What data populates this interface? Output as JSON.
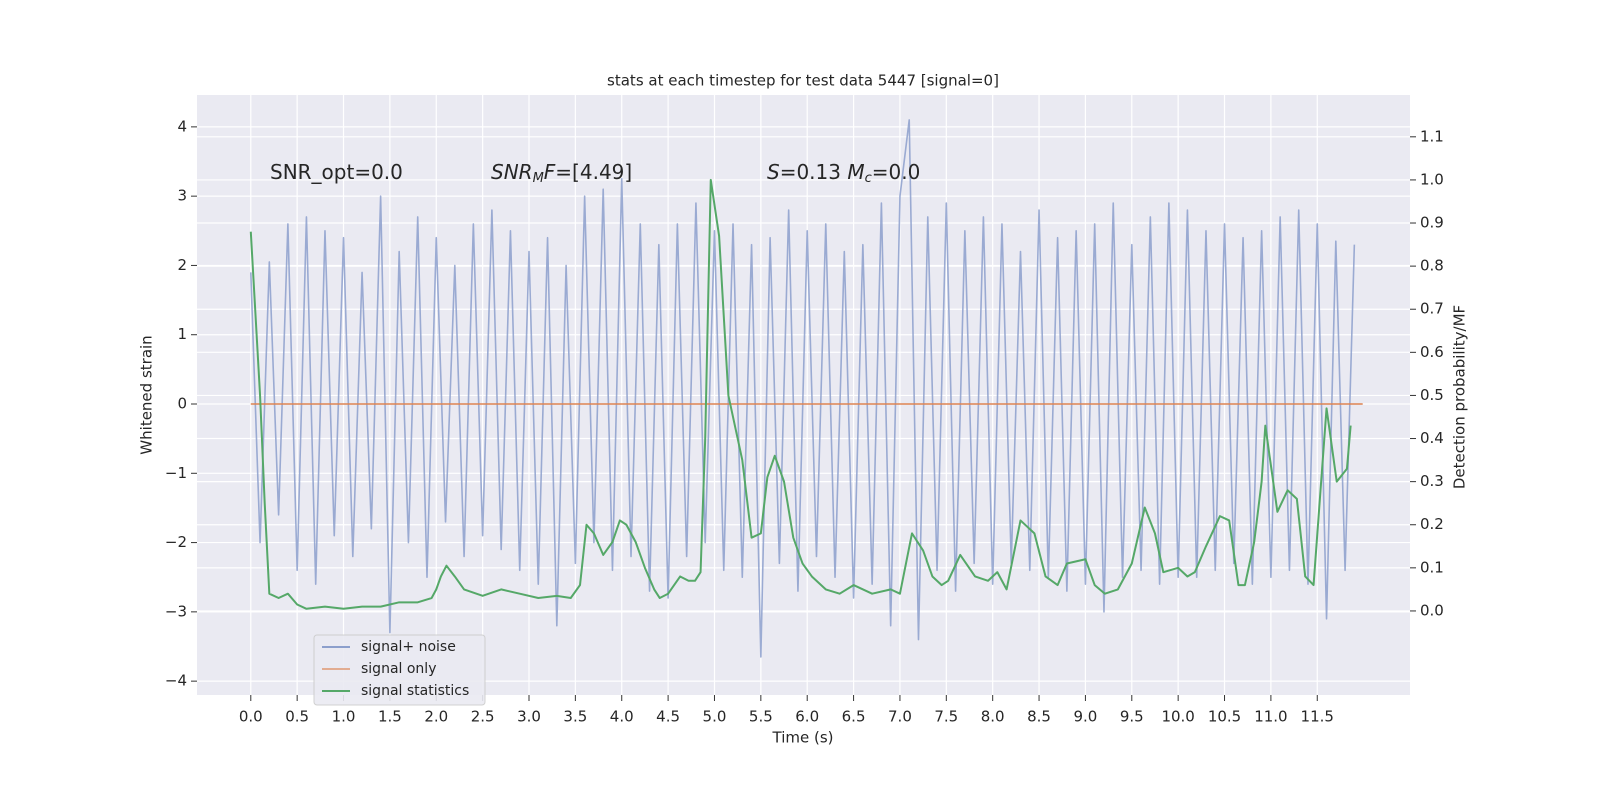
{
  "chart_data": {
    "type": "line",
    "title": "stats at each timestep for test data 5447 [signal=0]",
    "xlabel": "Time (s)",
    "ylabel": "Whitened strain",
    "y2label": "Detection probability/MF",
    "xlim": [
      -0.58,
      12.5
    ],
    "ylim": [
      -4.2,
      4.46
    ],
    "y2lim": [
      -0.195,
      1.197
    ],
    "xticks": [
      {
        "value": 0,
        "label": "0.0"
      },
      0.5,
      {
        "value": 1,
        "label": "1.0"
      },
      1.5,
      {
        "value": 2,
        "label": "2.0"
      },
      2.5,
      {
        "value": 3,
        "label": "3.0"
      },
      3.5,
      {
        "value": 4,
        "label": "4.0"
      },
      4.5,
      {
        "value": 5,
        "label": "5.0"
      },
      5.5,
      {
        "value": 6,
        "label": "6.0"
      },
      6.5,
      {
        "value": 7,
        "label": "7.0"
      },
      7.5,
      {
        "value": 8,
        "label": "8.0"
      },
      8.5,
      {
        "value": 9,
        "label": "9.0"
      },
      9.5,
      {
        "value": 10,
        "label": "10.0"
      },
      10.5,
      {
        "value": 11,
        "label": "11.0"
      },
      11.5
    ],
    "yticks": [
      {
        "value": -4,
        "label": "−4"
      },
      {
        "value": -3,
        "label": "−3"
      },
      {
        "value": -2,
        "label": "−2"
      },
      {
        "value": -1,
        "label": "−1"
      },
      0,
      1,
      2,
      3,
      4
    ],
    "y2ticks": [
      {
        "value": 0,
        "label": "0.0"
      },
      0.1,
      0.2,
      0.3,
      0.4,
      0.5,
      0.6,
      0.7,
      0.8,
      0.9,
      {
        "value": 1,
        "label": "1.0"
      },
      1.1
    ],
    "grid": true,
    "legend_loc": "lower left",
    "annotations": [
      [
        {
          "text": "SNR_opt=0.0"
        }
      ],
      [
        {
          "text": "SNR",
          "italic": true
        },
        {
          "text": "M",
          "italic": true,
          "sub": true
        },
        {
          "text": "F",
          "italic": true
        },
        {
          "text": "=[4.49]"
        }
      ],
      [
        {
          "text": "S",
          "italic": true
        },
        {
          "text": "=0.13   "
        },
        {
          "text": "M",
          "italic": true
        },
        {
          "text": "c",
          "italic": true,
          "sub": true
        },
        {
          "text": "=0.0"
        }
      ]
    ],
    "series": [
      {
        "name": "signal+ noise",
        "color": "#8c9fcc",
        "x": [
          0,
          0.1,
          0.2,
          0.3,
          0.4,
          0.5,
          0.6,
          0.7,
          0.8,
          0.9,
          1,
          1.1,
          1.2,
          1.3,
          1.4,
          1.5,
          1.6,
          1.7,
          1.8,
          1.9,
          2,
          2.1,
          2.2,
          2.3,
          2.4,
          2.5,
          2.6,
          2.7,
          2.8,
          2.9,
          3,
          3.1,
          3.2,
          3.3,
          3.4,
          3.5,
          3.6,
          3.7,
          3.8,
          3.9,
          4,
          4.1,
          4.2,
          4.3,
          4.4,
          4.5,
          4.6,
          4.7,
          4.8,
          4.9,
          5,
          5.1,
          5.2,
          5.3,
          5.4,
          5.5,
          5.6,
          5.7,
          5.8,
          5.9,
          6,
          6.1,
          6.2,
          6.3,
          6.4,
          6.5,
          6.6,
          6.7,
          6.8,
          6.9,
          7,
          7.1,
          7.2,
          7.3,
          7.4,
          7.5,
          7.6,
          7.7,
          7.8,
          7.9,
          8,
          8.1,
          8.2,
          8.3,
          8.4,
          8.5,
          8.6,
          8.7,
          8.8,
          8.9,
          9,
          9.1,
          9.2,
          9.3,
          9.4,
          9.5,
          9.6,
          9.7,
          9.8,
          9.9,
          10,
          10.1,
          10.2,
          10.3,
          10.4,
          10.5,
          10.6,
          10.7,
          10.8,
          10.9,
          11,
          11.1,
          11.2,
          11.3,
          11.4,
          11.5,
          11.6,
          11.7,
          11.8,
          11.9
        ],
        "values": [
          1.9,
          -2.0,
          2.05,
          -1.6,
          2.6,
          -2.4,
          2.7,
          -2.6,
          2.5,
          -1.9,
          2.4,
          -2.2,
          1.9,
          -1.8,
          3.0,
          -3.3,
          2.2,
          -2.0,
          2.7,
          -2.5,
          2.4,
          -1.7,
          2.0,
          -2.2,
          2.6,
          -1.9,
          2.8,
          -2.1,
          2.5,
          -2.4,
          2.2,
          -2.6,
          2.4,
          -3.2,
          2.0,
          -2.3,
          3.0,
          -2.0,
          3.1,
          -2.4,
          3.25,
          -2.2,
          2.6,
          -2.7,
          2.3,
          -2.8,
          2.6,
          -2.2,
          2.9,
          -2.0,
          2.5,
          -2.4,
          2.6,
          -2.5,
          2.3,
          -3.65,
          2.4,
          -2.3,
          2.8,
          -2.7,
          2.5,
          -2.2,
          2.6,
          -2.5,
          2.2,
          -2.8,
          2.3,
          -2.6,
          2.9,
          -3.2,
          3.0,
          4.1,
          -3.4,
          2.7,
          -2.4,
          2.9,
          -2.7,
          2.5,
          -2.3,
          2.7,
          -2.6,
          2.6,
          -2.3,
          2.2,
          -2.4,
          2.8,
          -2.5,
          2.4,
          -2.7,
          2.5,
          -2.6,
          2.6,
          -3.0,
          2.9,
          -2.5,
          2.3,
          -2.4,
          2.7,
          -2.6,
          2.9,
          -2.5,
          2.8,
          -2.5,
          2.5,
          -2.4,
          2.6,
          -2.3,
          2.4,
          -2.6,
          2.5,
          -2.5,
          2.7,
          -2.4,
          2.8,
          -2.6,
          2.6,
          -3.1,
          2.35,
          -2.4,
          2.3
        ]
      },
      {
        "name": "signal only",
        "color": "#dd8452",
        "x": [
          0,
          11.99
        ],
        "values": [
          0,
          0
        ]
      },
      {
        "name": "signal statistics",
        "color": "#55a868",
        "axis": "y2",
        "x": [
          0,
          0.1,
          0.15,
          0.2,
          0.3,
          0.4,
          0.5,
          0.6,
          0.8,
          1.0,
          1.2,
          1.4,
          1.6,
          1.8,
          1.95,
          2.0,
          2.05,
          2.11,
          2.2,
          2.3,
          2.5,
          2.7,
          2.9,
          3.1,
          3.3,
          3.45,
          3.55,
          3.62,
          3.7,
          3.8,
          3.9,
          3.98,
          4.05,
          4.15,
          4.25,
          4.35,
          4.41,
          4.5,
          4.63,
          4.72,
          4.79,
          4.85,
          4.9,
          4.96,
          5.05,
          5.15,
          5.3,
          5.4,
          5.5,
          5.57,
          5.65,
          5.75,
          5.85,
          5.95,
          6.05,
          6.2,
          6.35,
          6.5,
          6.7,
          6.9,
          7.0,
          7.13,
          7.25,
          7.35,
          7.45,
          7.52,
          7.65,
          7.81,
          7.95,
          8.05,
          8.15,
          8.3,
          8.45,
          8.57,
          8.7,
          8.8,
          9.0,
          9.1,
          9.21,
          9.35,
          9.5,
          9.64,
          9.75,
          9.84,
          10.0,
          10.1,
          10.18,
          10.3,
          10.45,
          10.55,
          10.65,
          10.72,
          10.82,
          10.9,
          10.94,
          11.07,
          11.18,
          11.28,
          11.37,
          11.46,
          11.6,
          11.71,
          11.82,
          11.86
        ],
        "values": [
          0.88,
          0.5,
          0.25,
          0.04,
          0.03,
          0.04,
          0.015,
          0.005,
          0.01,
          0.005,
          0.01,
          0.01,
          0.02,
          0.02,
          0.03,
          0.05,
          0.08,
          0.105,
          0.08,
          0.05,
          0.035,
          0.05,
          0.04,
          0.03,
          0.035,
          0.03,
          0.06,
          0.2,
          0.18,
          0.13,
          0.16,
          0.21,
          0.2,
          0.16,
          0.1,
          0.05,
          0.03,
          0.04,
          0.08,
          0.07,
          0.07,
          0.09,
          0.4,
          1.0,
          0.87,
          0.5,
          0.35,
          0.17,
          0.18,
          0.31,
          0.36,
          0.3,
          0.17,
          0.11,
          0.08,
          0.05,
          0.04,
          0.06,
          0.04,
          0.05,
          0.04,
          0.18,
          0.14,
          0.08,
          0.06,
          0.07,
          0.13,
          0.08,
          0.07,
          0.09,
          0.05,
          0.21,
          0.18,
          0.08,
          0.06,
          0.11,
          0.12,
          0.06,
          0.04,
          0.05,
          0.11,
          0.24,
          0.18,
          0.09,
          0.1,
          0.08,
          0.09,
          0.15,
          0.22,
          0.21,
          0.06,
          0.06,
          0.16,
          0.3,
          0.43,
          0.23,
          0.28,
          0.26,
          0.08,
          0.06,
          0.47,
          0.3,
          0.33,
          0.43
        ]
      }
    ]
  }
}
